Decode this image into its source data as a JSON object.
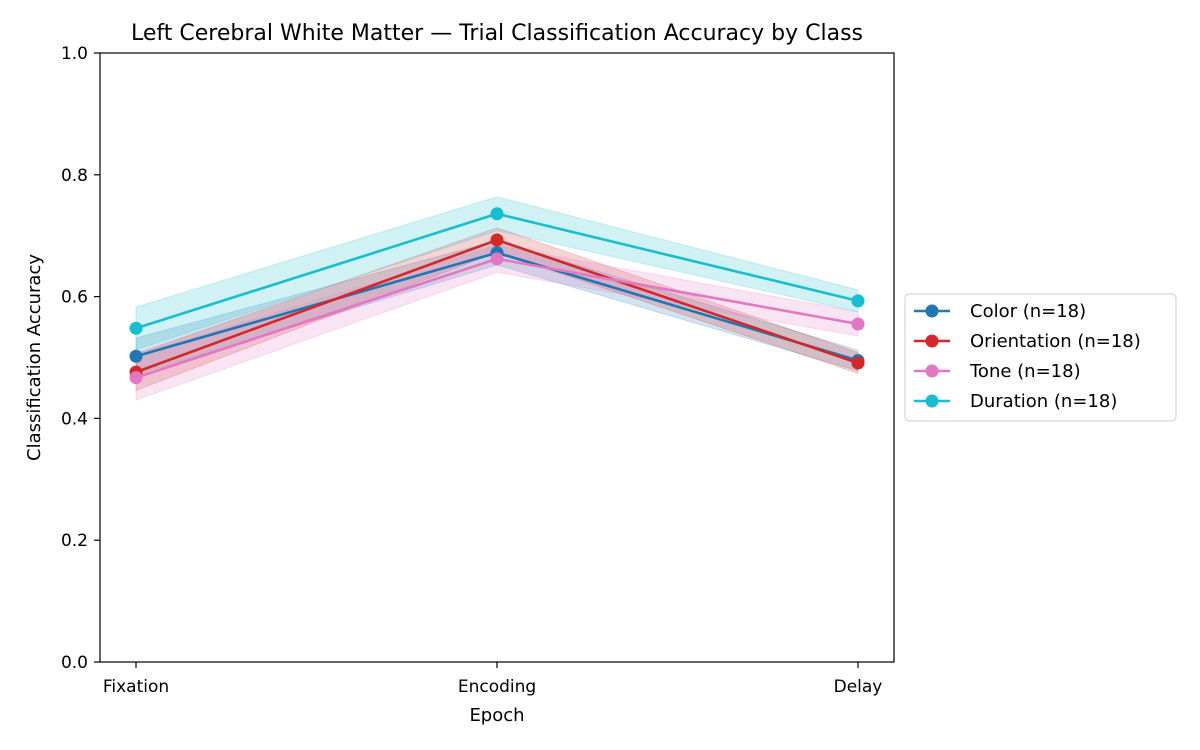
{
  "chart_data": {
    "type": "line",
    "title": "Left Cerebral White Matter — Trial Classification Accuracy by Class",
    "xlabel": "Epoch",
    "ylabel": "Classification Accuracy",
    "categories": [
      "Fixation",
      "Encoding",
      "Delay"
    ],
    "ylim": [
      0,
      1
    ],
    "yticks": [
      "0.0",
      "0.2",
      "0.4",
      "0.6",
      "0.8",
      "1.0"
    ],
    "grid": false,
    "legend_position": "right-outside",
    "series": [
      {
        "name": "Color (n=18)",
        "color": "#1f77b4",
        "values": [
          0.502,
          0.672,
          0.495
        ],
        "lower": [
          0.472,
          0.652,
          0.478
        ],
        "upper": [
          0.532,
          0.692,
          0.512
        ]
      },
      {
        "name": "Orientation (n=18)",
        "color": "#d62728",
        "values": [
          0.476,
          0.693,
          0.491
        ],
        "lower": [
          0.446,
          0.673,
          0.474
        ],
        "upper": [
          0.506,
          0.713,
          0.508
        ]
      },
      {
        "name": "Tone (n=18)",
        "color": "#e377c2",
        "values": [
          0.467,
          0.662,
          0.555
        ],
        "lower": [
          0.43,
          0.64,
          0.535
        ],
        "upper": [
          0.504,
          0.684,
          0.575
        ]
      },
      {
        "name": "Duration (n=18)",
        "color": "#17becf",
        "values": [
          0.548,
          0.736,
          0.593
        ],
        "lower": [
          0.513,
          0.708,
          0.575
        ],
        "upper": [
          0.583,
          0.764,
          0.611
        ]
      }
    ]
  }
}
